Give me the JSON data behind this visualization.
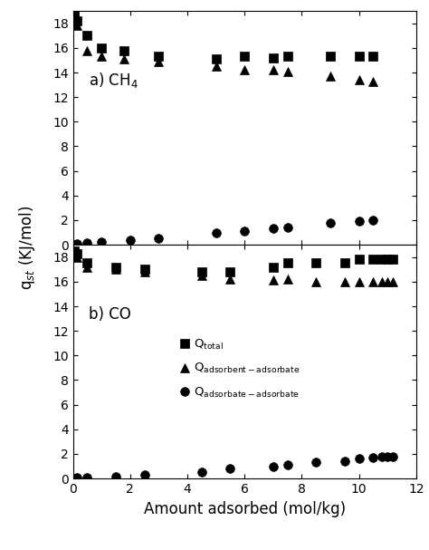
{
  "panel_a_label": "a) CH$_4$",
  "panel_b_label": "b) CO",
  "xlabel": "Amount adsorbed (mol/kg)",
  "shared_ylabel": "q$_{st}$ (KJ/mol)",
  "xlim": [
    0,
    12
  ],
  "ylim_a": [
    0,
    19
  ],
  "ylim_b": [
    0,
    19
  ],
  "yticks": [
    0,
    2,
    4,
    6,
    8,
    10,
    12,
    14,
    16,
    18
  ],
  "xticks": [
    0,
    2,
    4,
    6,
    8,
    10,
    12
  ],
  "a_qtotal_x": [
    0.05,
    0.15,
    0.5,
    1.0,
    1.8,
    3.0,
    5.0,
    6.0,
    7.0,
    7.5,
    9.0,
    10.0,
    10.5
  ],
  "a_qtotal_y": [
    18.8,
    18.2,
    17.0,
    16.0,
    15.8,
    15.3,
    15.1,
    15.3,
    15.2,
    15.3,
    15.3,
    15.3,
    15.3
  ],
  "a_qaa_x": [
    0.05,
    0.15,
    0.5,
    1.0,
    1.8,
    3.0,
    5.0,
    6.0,
    7.0,
    7.5,
    9.0,
    10.0,
    10.5
  ],
  "a_qaa_y": [
    18.6,
    17.8,
    15.8,
    15.3,
    15.1,
    14.9,
    14.5,
    14.2,
    14.2,
    14.1,
    13.7,
    13.4,
    13.3
  ],
  "a_qrr_x": [
    0.05,
    0.15,
    0.5,
    1.0,
    2.0,
    3.0,
    5.0,
    6.0,
    7.0,
    7.5,
    9.0,
    10.0,
    10.5
  ],
  "a_qrr_y": [
    0.0,
    0.05,
    0.15,
    0.25,
    0.4,
    0.5,
    1.0,
    1.1,
    1.3,
    1.4,
    1.8,
    1.9,
    2.0
  ],
  "b_qtotal_x": [
    0.05,
    0.15,
    0.5,
    1.5,
    2.5,
    4.5,
    5.5,
    7.0,
    7.5,
    8.5,
    9.5,
    10.0,
    10.5,
    10.8,
    11.0,
    11.2
  ],
  "b_qtotal_y": [
    18.5,
    18.3,
    17.5,
    17.2,
    17.0,
    16.8,
    16.8,
    17.2,
    17.5,
    17.5,
    17.5,
    17.8,
    17.8,
    17.8,
    17.8,
    17.8
  ],
  "b_qaa_x": [
    0.05,
    0.15,
    0.5,
    1.5,
    2.5,
    4.5,
    5.5,
    7.0,
    7.5,
    8.5,
    9.5,
    10.0,
    10.5,
    10.8,
    11.0,
    11.2
  ],
  "b_qaa_y": [
    18.2,
    18.0,
    17.2,
    17.0,
    16.8,
    16.5,
    16.2,
    16.1,
    16.2,
    16.0,
    16.0,
    16.0,
    16.0,
    16.0,
    16.0,
    16.0
  ],
  "b_qrr_x": [
    0.05,
    0.15,
    0.5,
    1.5,
    2.5,
    4.5,
    5.5,
    7.0,
    7.5,
    8.5,
    9.5,
    10.0,
    10.5,
    10.8,
    11.0,
    11.2
  ],
  "b_qrr_y": [
    0.0,
    0.05,
    0.1,
    0.15,
    0.3,
    0.5,
    0.8,
    1.0,
    1.1,
    1.3,
    1.4,
    1.6,
    1.7,
    1.75,
    1.8,
    1.8
  ],
  "legend_label_total": "Q$_{\\mathrm{total}}$",
  "legend_label_aa": "Q$_{\\mathrm{adsorbent-adsorbate}}$",
  "legend_label_rr": "Q$_{\\mathrm{adsorbate-adsorbate}}$",
  "marker_size": 7,
  "marker_color": "black"
}
